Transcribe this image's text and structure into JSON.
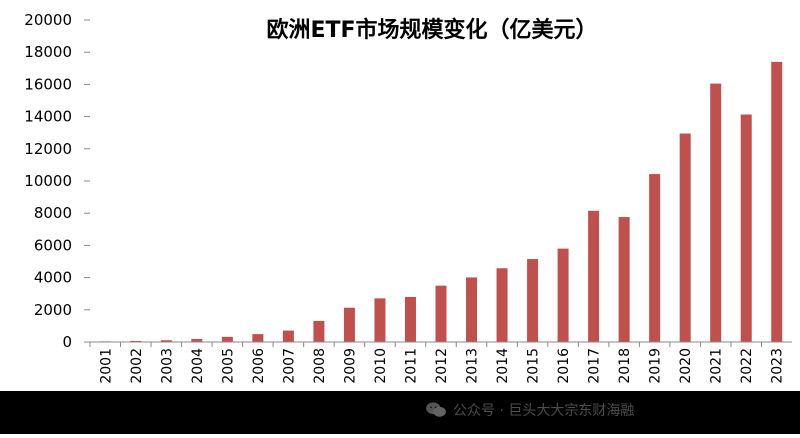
{
  "chart_data": {
    "type": "bar",
    "title": "欧洲ETF市场规模变化（亿美元）",
    "categories": [
      "2001",
      "2002",
      "2003",
      "2004",
      "2005",
      "2006",
      "2007",
      "2008",
      "2009",
      "2010",
      "2011",
      "2012",
      "2013",
      "2014",
      "2015",
      "2016",
      "2017",
      "2018",
      "2019",
      "2020",
      "2021",
      "2022",
      "2023"
    ],
    "values": [
      40,
      70,
      110,
      190,
      320,
      490,
      710,
      1310,
      2130,
      2710,
      2800,
      3500,
      4010,
      4580,
      5150,
      5800,
      8150,
      7760,
      10430,
      12950,
      16050,
      14130,
      17400
    ],
    "yticks": [
      "0",
      "2000",
      "4000",
      "6000",
      "8000",
      "10000",
      "12000",
      "14000",
      "16000",
      "18000",
      "20000"
    ],
    "ylim": [
      0,
      20000
    ],
    "bar_color": "#c0504d",
    "xlabel": "",
    "ylabel": ""
  },
  "watermark": {
    "icon": "wechat-icon",
    "text": "公众号 · 巨头大大宗东财海融"
  }
}
